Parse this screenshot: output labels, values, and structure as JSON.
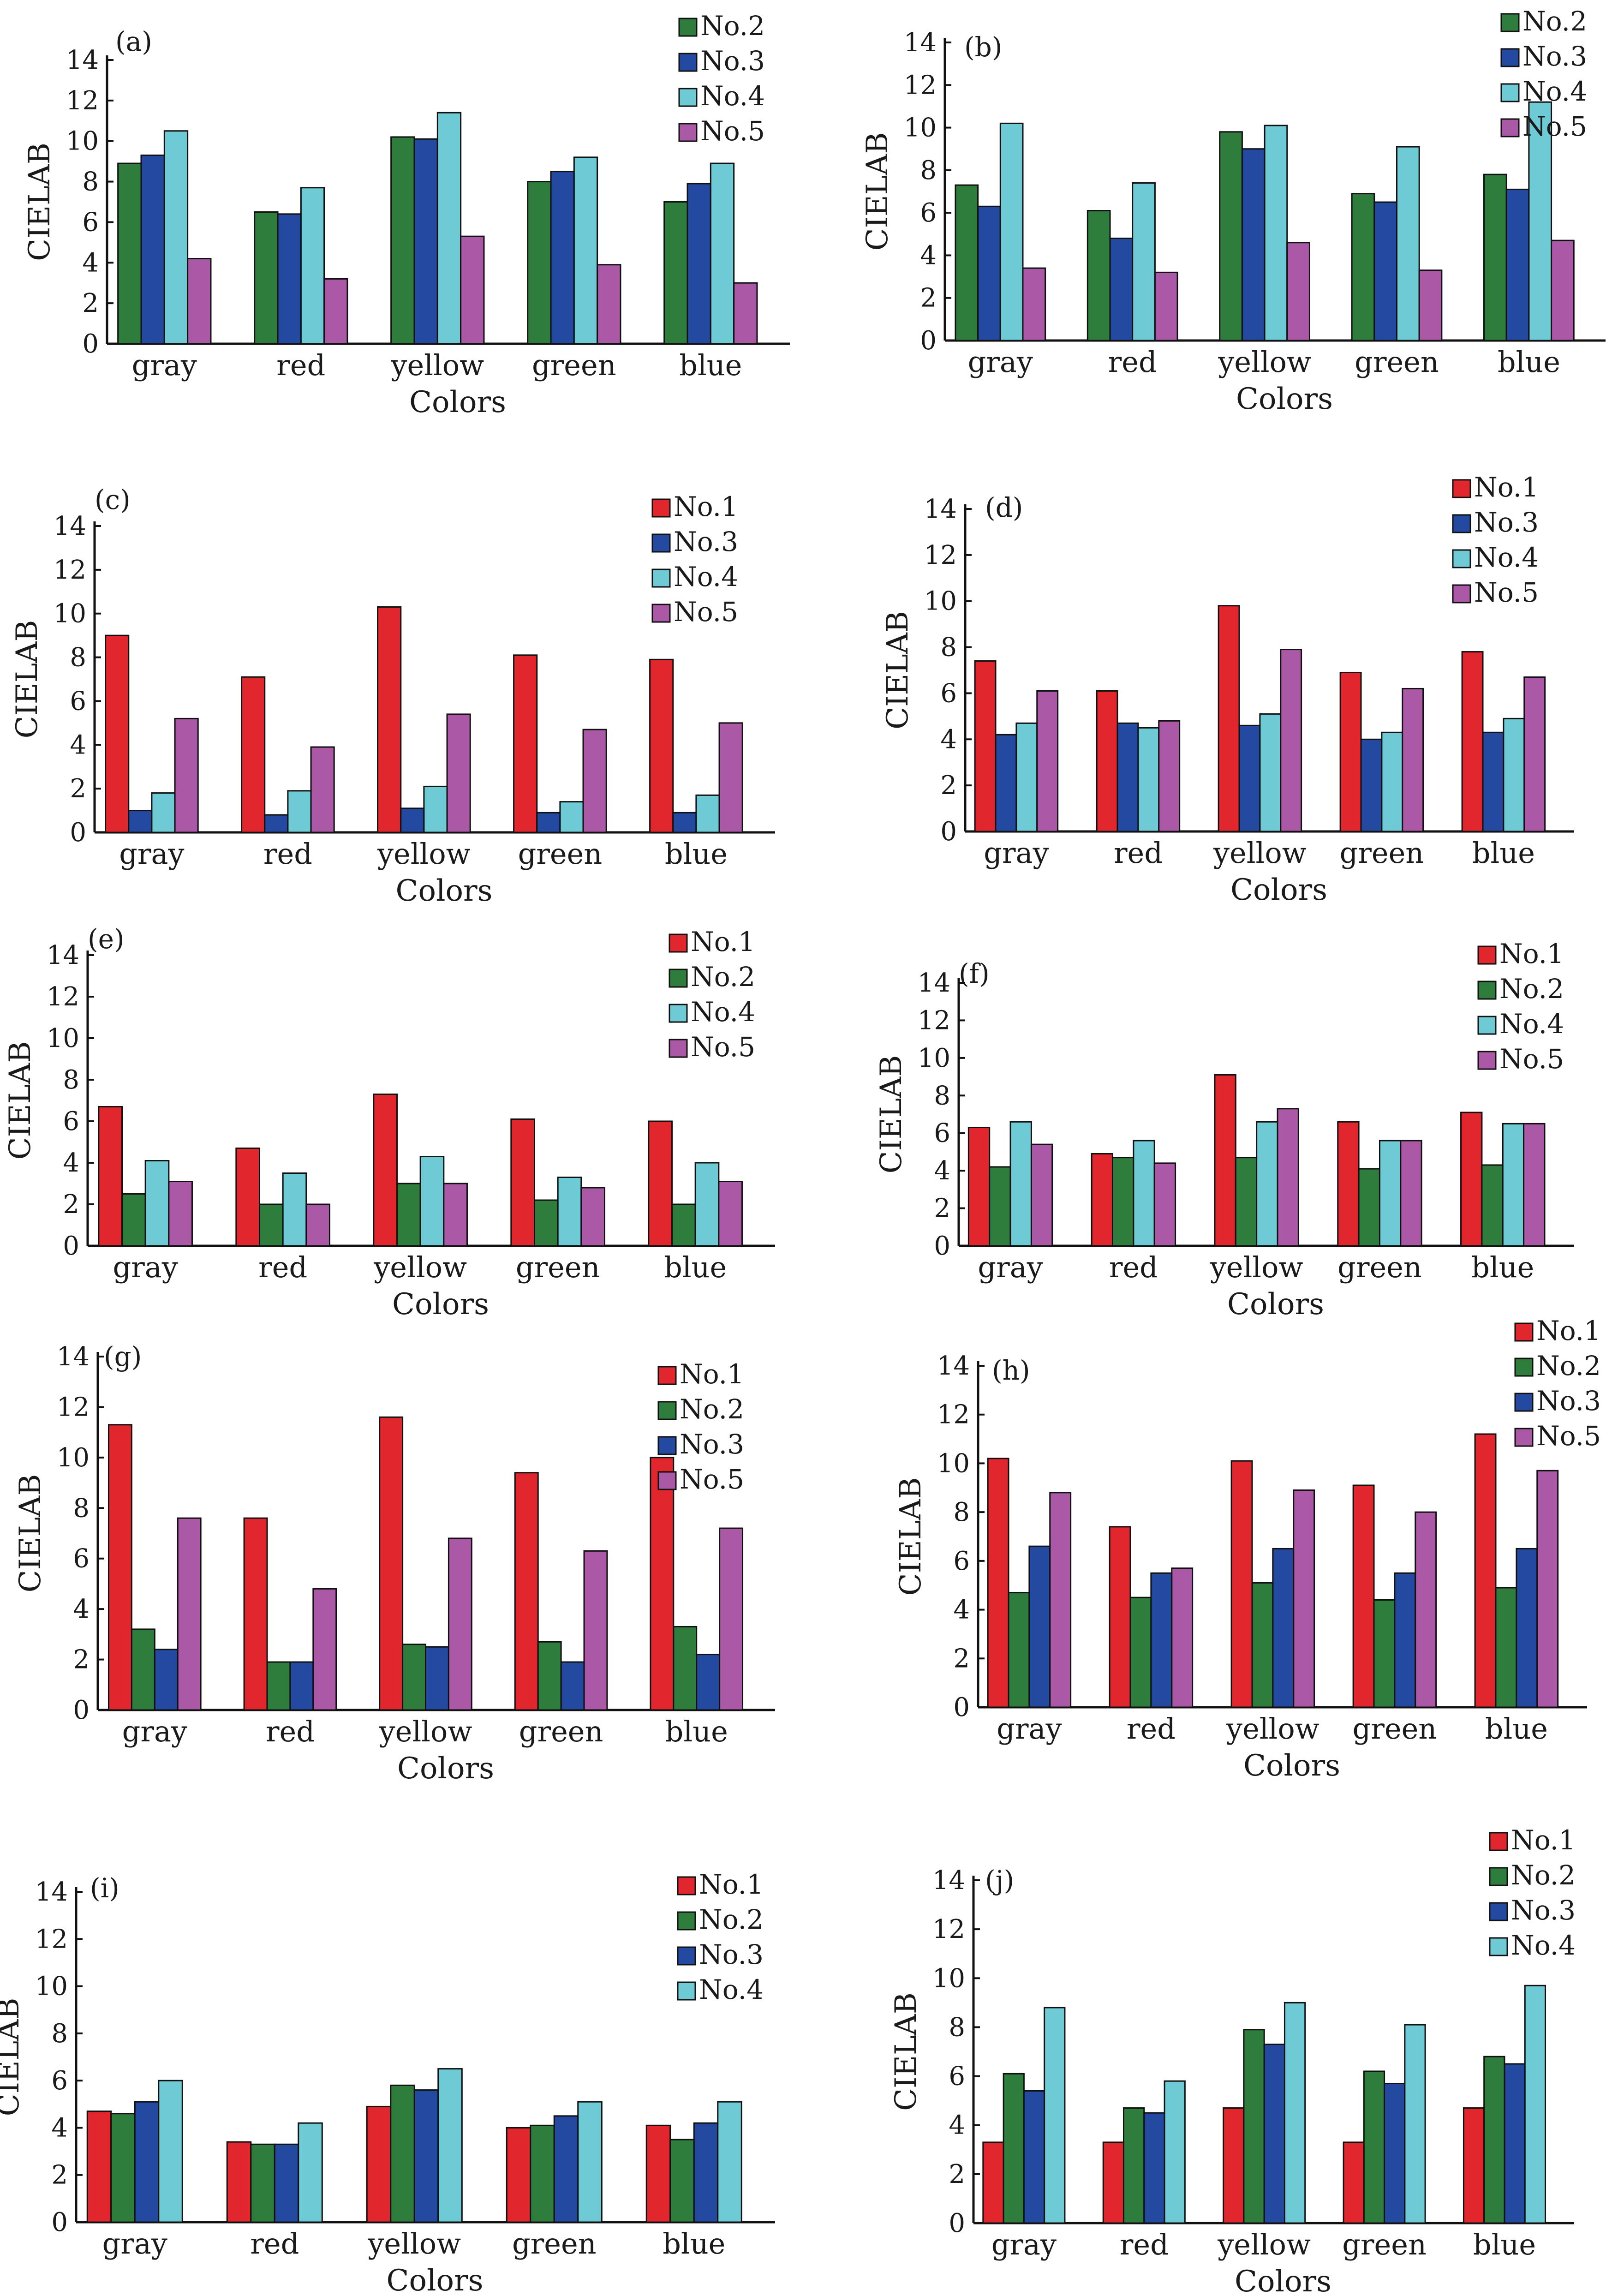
{
  "colors": {
    "No.1": "#e2262e",
    "No.2": "#2e7d3c",
    "No.3": "#2349a0",
    "No.4": "#6ecbd6",
    "No.5": "#ab58a7"
  },
  "chart_data": [
    {
      "type": "bar",
      "panel_label": "(a)",
      "categories": [
        "gray",
        "red",
        "yellow",
        "green",
        "blue"
      ],
      "series": [
        {
          "name": "No.2",
          "values": [
            8.9,
            6.5,
            10.2,
            8.0,
            7.0
          ]
        },
        {
          "name": "No.3",
          "values": [
            9.3,
            6.4,
            10.1,
            8.5,
            7.9
          ]
        },
        {
          "name": "No.4",
          "values": [
            10.5,
            7.7,
            11.4,
            9.2,
            8.9
          ]
        },
        {
          "name": "No.5",
          "values": [
            4.2,
            3.2,
            5.3,
            3.9,
            3.0
          ]
        }
      ],
      "xlabel": "Colors",
      "ylabel": "CIELAB",
      "ylim": [
        0,
        14
      ],
      "yticks": [
        0,
        2,
        4,
        6,
        8,
        10,
        12,
        14
      ],
      "legend": "top-right"
    },
    {
      "type": "bar",
      "panel_label": "(b)",
      "categories": [
        "gray",
        "red",
        "yellow",
        "green",
        "blue"
      ],
      "series": [
        {
          "name": "No.2",
          "values": [
            7.3,
            6.1,
            9.8,
            6.9,
            7.8
          ]
        },
        {
          "name": "No.3",
          "values": [
            6.3,
            4.8,
            9.0,
            6.5,
            7.1
          ]
        },
        {
          "name": "No.4",
          "values": [
            10.2,
            7.4,
            10.1,
            9.1,
            11.2
          ]
        },
        {
          "name": "No.5",
          "values": [
            3.4,
            3.2,
            4.6,
            3.3,
            4.7
          ]
        }
      ],
      "xlabel": "Colors",
      "ylabel": "CIELAB",
      "ylim": [
        0,
        14
      ],
      "yticks": [
        0,
        2,
        4,
        6,
        8,
        10,
        12,
        14
      ],
      "legend": "top-right"
    },
    {
      "type": "bar",
      "panel_label": "(c)",
      "categories": [
        "gray",
        "red",
        "yellow",
        "green",
        "blue"
      ],
      "series": [
        {
          "name": "No.1",
          "values": [
            9.0,
            7.1,
            10.3,
            8.1,
            7.9
          ]
        },
        {
          "name": "No.3",
          "values": [
            1.0,
            0.8,
            1.1,
            0.9,
            0.9
          ]
        },
        {
          "name": "No.4",
          "values": [
            1.8,
            1.9,
            2.1,
            1.4,
            1.7
          ]
        },
        {
          "name": "No.5",
          "values": [
            5.2,
            3.9,
            5.4,
            4.7,
            5.0
          ]
        }
      ],
      "xlabel": "Colors",
      "ylabel": "CIELAB",
      "ylim": [
        0,
        14
      ],
      "yticks": [
        0,
        2,
        4,
        6,
        8,
        10,
        12,
        14
      ],
      "legend": "top-right"
    },
    {
      "type": "bar",
      "panel_label": "(d)",
      "categories": [
        "gray",
        "red",
        "yellow",
        "green",
        "blue"
      ],
      "series": [
        {
          "name": "No.1",
          "values": [
            7.4,
            6.1,
            9.8,
            6.9,
            7.8
          ]
        },
        {
          "name": "No.3",
          "values": [
            4.2,
            4.7,
            4.6,
            4.0,
            4.3
          ]
        },
        {
          "name": "No.4",
          "values": [
            4.7,
            4.5,
            5.1,
            4.3,
            4.9
          ]
        },
        {
          "name": "No.5",
          "values": [
            6.1,
            4.8,
            7.9,
            6.2,
            6.7
          ]
        }
      ],
      "xlabel": "Colors",
      "ylabel": "CIELAB",
      "ylim": [
        0,
        14
      ],
      "yticks": [
        0,
        2,
        4,
        6,
        8,
        10,
        12,
        14
      ],
      "legend": "top-right"
    },
    {
      "type": "bar",
      "panel_label": "(e)",
      "categories": [
        "gray",
        "red",
        "yellow",
        "green",
        "blue"
      ],
      "series": [
        {
          "name": "No.1",
          "values": [
            6.7,
            4.7,
            7.3,
            6.1,
            6.0
          ]
        },
        {
          "name": "No.2",
          "values": [
            2.5,
            2.0,
            3.0,
            2.2,
            2.0
          ]
        },
        {
          "name": "No.4",
          "values": [
            4.1,
            3.5,
            4.3,
            3.3,
            4.0
          ]
        },
        {
          "name": "No.5",
          "values": [
            3.1,
            2.0,
            3.0,
            2.8,
            3.1
          ]
        }
      ],
      "xlabel": "Colors",
      "ylabel": "CIELAB",
      "ylim": [
        0,
        14
      ],
      "yticks": [
        0,
        2,
        4,
        6,
        8,
        10,
        12,
        14
      ],
      "legend": "top-right"
    },
    {
      "type": "bar",
      "panel_label": "(f)",
      "categories": [
        "gray",
        "red",
        "yellow",
        "green",
        "blue"
      ],
      "series": [
        {
          "name": "No.1",
          "values": [
            6.3,
            4.9,
            9.1,
            6.6,
            7.1
          ]
        },
        {
          "name": "No.2",
          "values": [
            4.2,
            4.7,
            4.7,
            4.1,
            4.3
          ]
        },
        {
          "name": "No.4",
          "values": [
            6.6,
            5.6,
            6.6,
            5.6,
            6.5
          ]
        },
        {
          "name": "No.5",
          "values": [
            5.4,
            4.4,
            7.3,
            5.6,
            6.5
          ]
        }
      ],
      "xlabel": "Colors",
      "ylabel": "CIELAB",
      "ylim": [
        0,
        14
      ],
      "yticks": [
        0,
        2,
        4,
        6,
        8,
        10,
        12,
        14
      ],
      "legend": "top-right"
    },
    {
      "type": "bar",
      "panel_label": "(g)",
      "categories": [
        "gray",
        "red",
        "yellow",
        "green",
        "blue"
      ],
      "series": [
        {
          "name": "No.1",
          "values": [
            11.3,
            7.6,
            11.6,
            9.4,
            10.0
          ]
        },
        {
          "name": "No.2",
          "values": [
            3.2,
            1.9,
            2.6,
            2.7,
            3.3
          ]
        },
        {
          "name": "No.3",
          "values": [
            2.4,
            1.9,
            2.5,
            1.9,
            2.2
          ]
        },
        {
          "name": "No.5",
          "values": [
            7.6,
            4.8,
            6.8,
            6.3,
            7.2
          ]
        }
      ],
      "xlabel": "Colors",
      "ylabel": "CIELAB",
      "ylim": [
        0,
        14
      ],
      "yticks": [
        0,
        2,
        4,
        6,
        8,
        10,
        12,
        14
      ],
      "legend": "top-right"
    },
    {
      "type": "bar",
      "panel_label": "(h)",
      "categories": [
        "gray",
        "red",
        "yellow",
        "green",
        "blue"
      ],
      "series": [
        {
          "name": "No.1",
          "values": [
            10.2,
            7.4,
            10.1,
            9.1,
            11.2
          ]
        },
        {
          "name": "No.2",
          "values": [
            4.7,
            4.5,
            5.1,
            4.4,
            4.9
          ]
        },
        {
          "name": "No.3",
          "values": [
            6.6,
            5.5,
            6.5,
            5.5,
            6.5
          ]
        },
        {
          "name": "No.5",
          "values": [
            8.8,
            5.7,
            8.9,
            8.0,
            9.7
          ]
        }
      ],
      "xlabel": "Colors",
      "ylabel": "CIELAB",
      "ylim": [
        0,
        14
      ],
      "yticks": [
        0,
        2,
        4,
        6,
        8,
        10,
        12,
        14
      ],
      "legend": "top-right"
    },
    {
      "type": "bar",
      "panel_label": "(i)",
      "categories": [
        "gray",
        "red",
        "yellow",
        "green",
        "blue"
      ],
      "series": [
        {
          "name": "No.1",
          "values": [
            4.7,
            3.4,
            4.9,
            4.0,
            4.1
          ]
        },
        {
          "name": "No.2",
          "values": [
            4.6,
            3.3,
            5.8,
            4.1,
            3.5
          ]
        },
        {
          "name": "No.3",
          "values": [
            5.1,
            3.3,
            5.6,
            4.5,
            4.2
          ]
        },
        {
          "name": "No.4",
          "values": [
            6.0,
            4.2,
            6.5,
            5.1,
            5.1
          ]
        }
      ],
      "xlabel": "Colors",
      "ylabel": "CIELAB",
      "ylim": [
        0,
        14
      ],
      "yticks": [
        0,
        2,
        4,
        6,
        8,
        10,
        12,
        14
      ],
      "legend": "top-right"
    },
    {
      "type": "bar",
      "panel_label": "(j)",
      "categories": [
        "gray",
        "red",
        "yellow",
        "green",
        "blue"
      ],
      "series": [
        {
          "name": "No.1",
          "values": [
            3.3,
            3.3,
            4.7,
            3.3,
            4.7
          ]
        },
        {
          "name": "No.2",
          "values": [
            6.1,
            4.7,
            7.9,
            6.2,
            6.8
          ]
        },
        {
          "name": "No.3",
          "values": [
            5.4,
            4.5,
            7.3,
            5.7,
            6.5
          ]
        },
        {
          "name": "No.4",
          "values": [
            8.8,
            5.8,
            9.0,
            8.1,
            9.7
          ]
        }
      ],
      "xlabel": "Colors",
      "ylabel": "CIELAB",
      "ylim": [
        0,
        14
      ],
      "yticks": [
        0,
        2,
        4,
        6,
        8,
        10,
        12,
        14
      ],
      "legend": "top-right"
    }
  ]
}
